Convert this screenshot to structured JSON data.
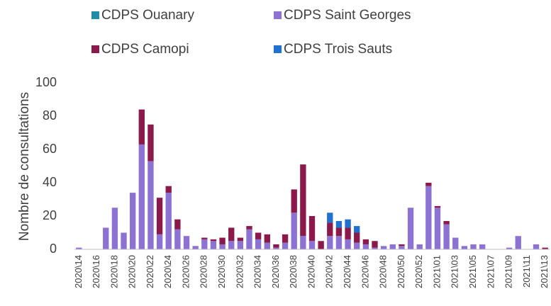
{
  "chart_data": {
    "type": "stacked_bar",
    "y_label": "Nombre de consultations",
    "categories": [
      "2020\\14",
      null,
      "2020\\16",
      null,
      "2020\\18",
      null,
      "2020\\20",
      null,
      "2020\\22",
      null,
      "2020\\24",
      null,
      "2020\\26",
      null,
      "2020\\28",
      null,
      "2020\\30",
      null,
      "2020\\32",
      null,
      "2020\\34",
      null,
      "2020\\36",
      null,
      "2020\\38",
      null,
      "2020\\40",
      null,
      "2020\\42",
      null,
      "2020\\44",
      null,
      "2020\\46",
      null,
      "2020\\48",
      null,
      "2020\\50",
      null,
      "2020\\52",
      null,
      "2021\\01",
      null,
      "2021\\03",
      null,
      "2021\\05",
      null,
      "2021\\07",
      null,
      "2021\\09",
      null,
      "2021\\11",
      null,
      "2021\\13"
    ],
    "series": [
      {
        "name": "CDPS Saint Georges",
        "color": "#8c72d2",
        "values": [
          1,
          0,
          0,
          13,
          25,
          10,
          34,
          63,
          53,
          9,
          34,
          12,
          8,
          2,
          6,
          5,
          3,
          5,
          5,
          12,
          6,
          4,
          1,
          4,
          22,
          8,
          5,
          0,
          8,
          8,
          6,
          4,
          3,
          1,
          2,
          3,
          2,
          25,
          3,
          38,
          25,
          15,
          7,
          2,
          3,
          3,
          0,
          0,
          1,
          8,
          0,
          3,
          0
        ]
      },
      {
        "name": "CDPS Camopi",
        "color": "#8b1a4b",
        "values": [
          0,
          0,
          0,
          0,
          0,
          0,
          0,
          21,
          22,
          22,
          4,
          6,
          0,
          0,
          1,
          1,
          4,
          8,
          2,
          2,
          4,
          5,
          2,
          5,
          14,
          43,
          15,
          5,
          8,
          5,
          7,
          6,
          3,
          4,
          0,
          0,
          1,
          0,
          0,
          2,
          1,
          2,
          0,
          0,
          0,
          0,
          0,
          0,
          0,
          0,
          0,
          0,
          1
        ]
      },
      {
        "name": "CDPS Ouanary",
        "color": "#1e8ea8",
        "values": [
          0,
          0,
          0,
          0,
          0,
          0,
          0,
          0,
          0,
          0,
          0,
          0,
          0,
          0,
          0,
          0,
          0,
          0,
          0,
          0,
          0,
          0,
          0,
          0,
          0,
          0,
          0,
          0,
          0,
          0,
          0,
          0,
          0,
          0,
          0,
          0,
          0,
          0,
          0,
          0,
          0,
          0,
          0,
          0,
          0,
          0,
          0,
          0,
          0,
          0,
          0,
          0,
          0
        ]
      },
      {
        "name": "CDPS Trois Sauts",
        "color": "#2070d0",
        "values": [
          0,
          0,
          0,
          0,
          0,
          0,
          0,
          0,
          0,
          0,
          0,
          0,
          0,
          0,
          0,
          0,
          0,
          0,
          0,
          0,
          0,
          0,
          0,
          0,
          0,
          0,
          0,
          0,
          6,
          4,
          5,
          4,
          0,
          0,
          0,
          0,
          0,
          0,
          0,
          0,
          0,
          0,
          0,
          0,
          0,
          0,
          0,
          0,
          0,
          0,
          0,
          0,
          0
        ]
      }
    ],
    "legend_order": [
      2,
      0,
      1,
      3
    ],
    "ylim": [
      0,
      100
    ],
    "yticks": [
      0,
      20,
      40,
      60,
      80,
      100
    ]
  }
}
